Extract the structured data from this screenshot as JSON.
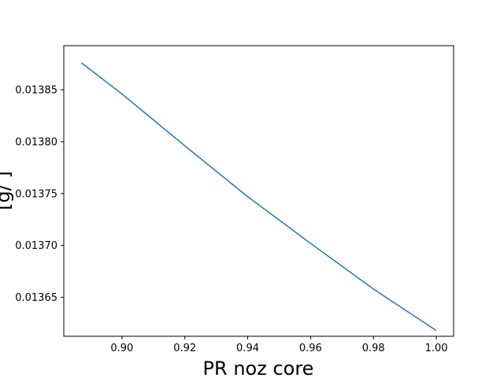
{
  "chart_data": {
    "type": "line",
    "title": "",
    "xlabel": "PR  noz  core",
    "ylabel": "[g/    ]",
    "xlim": [
      0.8815,
      1.0055
    ],
    "ylim": [
      0.0136125,
      0.0138925
    ],
    "xticks": [
      0.9,
      0.92,
      0.94,
      0.96,
      0.98,
      1.0
    ],
    "xtick_labels": [
      "0.90",
      "0.92",
      "0.94",
      "0.96",
      "0.98",
      "1.00"
    ],
    "yticks": [
      0.01365,
      0.0137,
      0.01375,
      0.0138,
      0.01385
    ],
    "ytick_labels": [
      "0.01365",
      "0.01370",
      "0.01375",
      "0.01380",
      "0.01385"
    ],
    "grid": false,
    "legend": "none",
    "series": [
      {
        "color": "#1f77b4",
        "x": [
          0.8871,
          0.9,
          0.92,
          0.94,
          0.96,
          0.98,
          1.0
        ],
        "y": [
          0.013876,
          0.013846,
          0.013796,
          0.013747,
          0.013702,
          0.013658,
          0.013618
        ]
      }
    ]
  }
}
